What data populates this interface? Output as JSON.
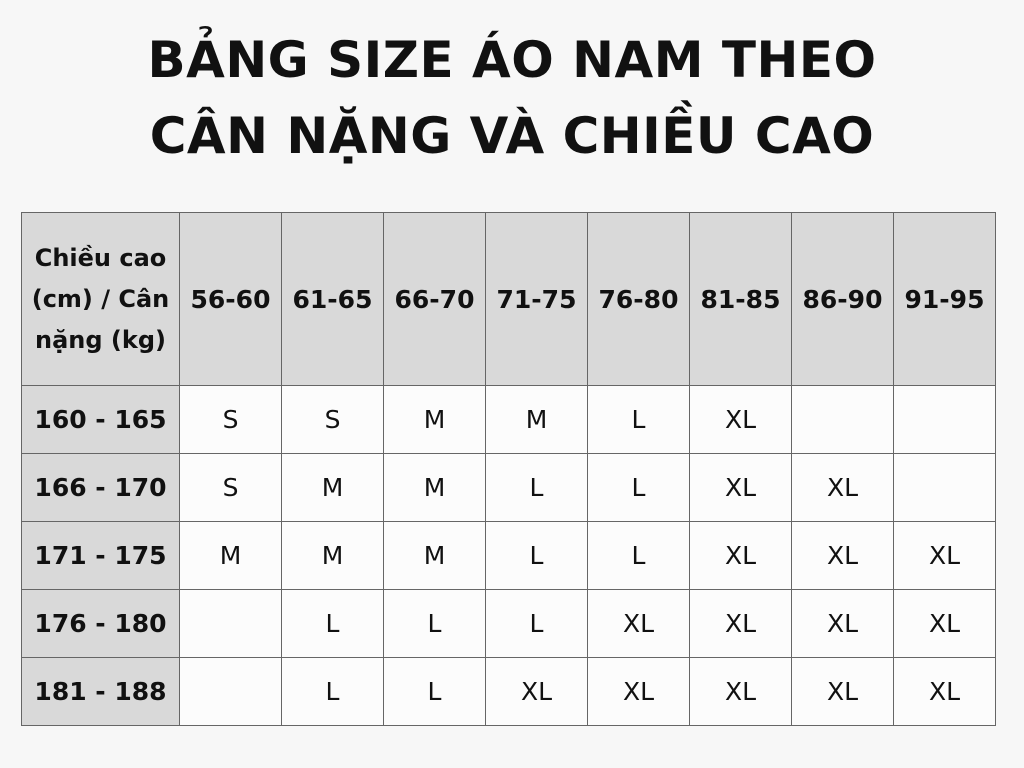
{
  "title": {
    "line1": "BẢNG SIZE ÁO NAM THEO",
    "line2": "CÂN NẶNG VÀ CHIỀU CAO"
  },
  "table": {
    "corner_header": "Chiều cao (cm) / Cân nặng (kg)",
    "columns": [
      "56-60",
      "61-65",
      "66-70",
      "71-75",
      "76-80",
      "81-85",
      "86-90",
      "91-95"
    ],
    "rows": [
      {
        "height": "160 - 165",
        "sizes": [
          "S",
          "S",
          "M",
          "M",
          "L",
          "XL",
          "",
          ""
        ]
      },
      {
        "height": "166 - 170",
        "sizes": [
          "S",
          "M",
          "M",
          "L",
          "L",
          "XL",
          "XL",
          ""
        ]
      },
      {
        "height": "171 - 175",
        "sizes": [
          "M",
          "M",
          "M",
          "L",
          "L",
          "XL",
          "XL",
          "XL"
        ]
      },
      {
        "height": "176 - 180",
        "sizes": [
          "",
          "L",
          "L",
          "L",
          "XL",
          "XL",
          "XL",
          "XL"
        ]
      },
      {
        "height": "181 - 188",
        "sizes": [
          "",
          "L",
          "L",
          "XL",
          "XL",
          "XL",
          "XL",
          "XL"
        ]
      }
    ]
  },
  "colors": {
    "background": "#f7f7f7",
    "header": "#d9d9d9",
    "cell": "#fcfcfc",
    "border": "#666666"
  }
}
